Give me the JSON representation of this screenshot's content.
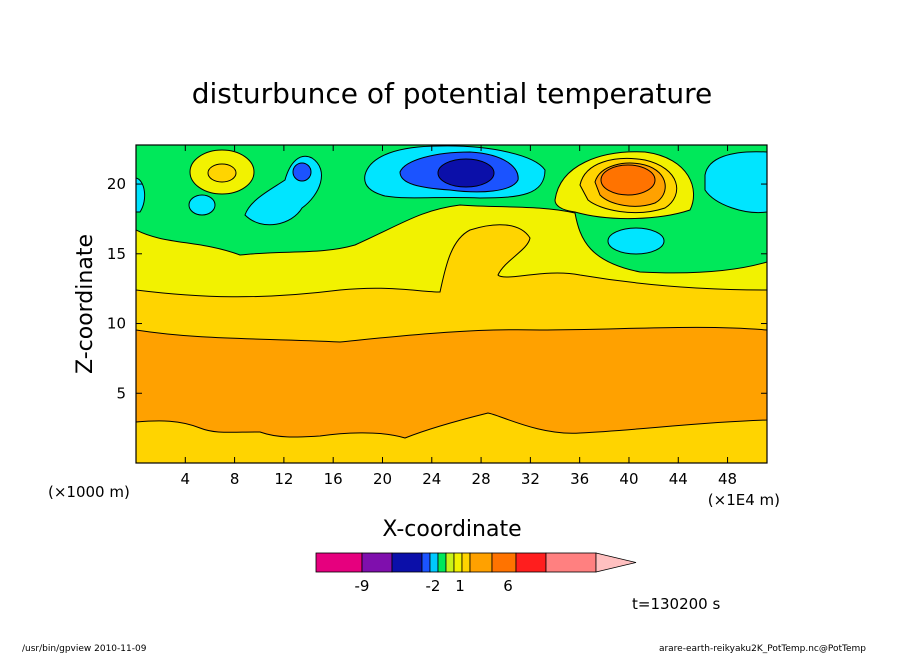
{
  "chart_data": {
    "type": "contour",
    "title": "disturbunce of potential temperature",
    "xlabel": "X-coordinate",
    "ylabel": "Z-coordinate",
    "x_unit_note": "(×1E4 m)",
    "y_unit_note": "(×1000 m)",
    "xlim": [
      0,
      51.2
    ],
    "ylim": [
      0,
      22.8
    ],
    "x_ticks": [
      4,
      8,
      12,
      16,
      20,
      24,
      28,
      32,
      36,
      40,
      44,
      48
    ],
    "y_ticks": [
      5,
      10,
      15,
      20
    ],
    "time_label": "t=130200 s",
    "colorbar": {
      "colors": [
        "#e6007e",
        "#7f0fad",
        "#0b0fa9",
        "#1b53ff",
        "#00c8ff",
        "#00e85a",
        "#c8f21a",
        "#f2f200",
        "#ffd400",
        "#ffa100",
        "#ff7300",
        "#ff1e1e",
        "#ff8080",
        "#ffc0c0"
      ],
      "tick_labels": [
        "-9",
        "-2",
        "1",
        "6"
      ]
    },
    "layers": [
      {
        "name": "background",
        "color": "#00e85a"
      },
      {
        "name": "upper-warm-band",
        "color": "#f2f200"
      },
      {
        "name": "mid-warm-band",
        "color": "#ffd400"
      },
      {
        "name": "core-band",
        "color": "#ffa100"
      },
      {
        "name": "warm-cell",
        "color": "#ffd400"
      },
      {
        "name": "hot-core",
        "color": "#ff7300"
      },
      {
        "name": "cool-cell",
        "color": "#00e5ff"
      },
      {
        "name": "cold-core",
        "color": "#1b53ff"
      },
      {
        "name": "coldest-core",
        "color": "#0b0fa9"
      }
    ]
  },
  "footer": {
    "left": "/usr/bin/gpview  2010-11-09",
    "right": "arare-earth-reikyaku2K_PotTemp.nc@PotTemp"
  }
}
